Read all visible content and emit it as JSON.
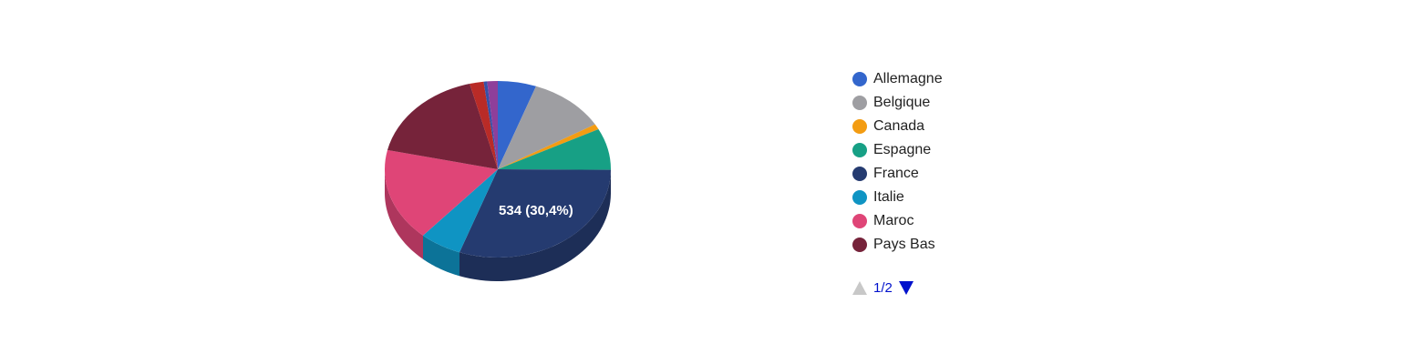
{
  "chart_data": {
    "type": "pie",
    "style": "3d",
    "slices": [
      {
        "label": "Allemagne",
        "percent": 5.5,
        "color": "#3366cc"
      },
      {
        "label": "Belgique",
        "percent": 11.0,
        "color": "#9e9ea2"
      },
      {
        "label": "Canada",
        "percent": 1.0,
        "color": "#f39c12"
      },
      {
        "label": "Espagne",
        "percent": 7.6,
        "color": "#17a085"
      },
      {
        "label": "France",
        "value": 534,
        "percent": 30.4,
        "value_label": "534 (30,4%)",
        "color": "#253b70"
      },
      {
        "label": "Italie",
        "percent": 6.0,
        "color": "#0f94c3"
      },
      {
        "label": "Maroc",
        "percent": 17.0,
        "color": "#df4577"
      },
      {
        "label": "Pays Bas",
        "percent": 17.5,
        "color": "#76233a"
      },
      {
        "label": "",
        "percent": 2.0,
        "color": "#b92b27"
      },
      {
        "label": "",
        "percent": 0.5,
        "color": "#3650a8"
      },
      {
        "label": "",
        "percent": 1.5,
        "color": "#8e3f9a"
      }
    ],
    "legend_position": "right"
  },
  "legend": {
    "items": [
      {
        "label": "Allemagne",
        "color": "#3366cc"
      },
      {
        "label": "Belgique",
        "color": "#9e9ea2"
      },
      {
        "label": "Canada",
        "color": "#f39c12"
      },
      {
        "label": "Espagne",
        "color": "#17a085"
      },
      {
        "label": "France",
        "color": "#253b70"
      },
      {
        "label": "Italie",
        "color": "#0f94c3"
      },
      {
        "label": "Maroc",
        "color": "#df4577"
      },
      {
        "label": "Pays Bas",
        "color": "#76233a"
      }
    ],
    "pager": {
      "text": "1/2",
      "up_icon": "triangle-up-icon",
      "down_icon": "triangle-down-icon"
    }
  }
}
